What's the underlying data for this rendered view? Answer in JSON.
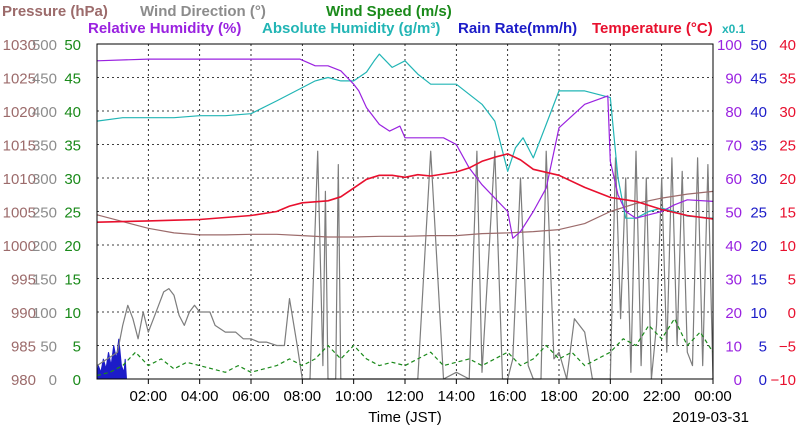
{
  "chart_data": {
    "type": "line",
    "title_parts": [
      [
        {
          "text": "Pressure (hPa)",
          "color": "#9c6b6b"
        },
        {
          "text": "Wind Direction (°)",
          "color": "#8c8c8c"
        },
        {
          "text": "Wind Speed (m/s)",
          "color": "#1a8a1a"
        }
      ],
      [
        {
          "text": "Relative Humidity (%)",
          "color": "#9a22e0"
        },
        {
          "text": "Absolute Humidity (g/m³)",
          "color": "#22b5b5"
        },
        {
          "text": "Rain Rate(mm/h)",
          "color": "#1c1cc8"
        },
        {
          "text": "Temperature (°C)",
          "color": "#e8102e"
        },
        {
          "text": "x0.1",
          "color": "#22b5b5"
        }
      ]
    ],
    "xlabel": "Time (JST)",
    "date_label": "2019-03-31",
    "x_range_hours": [
      0,
      24
    ],
    "x_ticks": [
      "02:00",
      "04:00",
      "06:00",
      "08:00",
      "10:00",
      "12:00",
      "14:00",
      "16:00",
      "18:00",
      "20:00",
      "22:00",
      "00:00"
    ],
    "left_axes": [
      {
        "name": "Pressure (hPa)",
        "color": "#9c6b6b",
        "ticks": [
          "980",
          "985",
          "990",
          "995",
          "1000",
          "1005",
          "1010",
          "1015",
          "1020",
          "1025",
          "1030"
        ],
        "ylim": [
          980,
          1030
        ]
      },
      {
        "name": "Wind Direction (°)",
        "color": "#8c8c8c",
        "ticks": [
          "0",
          "50",
          "100",
          "150",
          "200",
          "250",
          "300",
          "350",
          "400",
          "450",
          "500"
        ],
        "ylim": [
          0,
          500
        ]
      },
      {
        "name": "Wind Speed (m/s)",
        "color": "#1a8a1a",
        "ticks": [
          "0",
          "5",
          "10",
          "15",
          "20",
          "25",
          "30",
          "35",
          "40",
          "45",
          "50"
        ],
        "ylim": [
          0,
          50
        ]
      }
    ],
    "right_axes": [
      {
        "name": "Relative Humidity (%)",
        "color": "#9a22e0",
        "ticks": [
          "0",
          "10",
          "20",
          "30",
          "40",
          "50",
          "60",
          "70",
          "80",
          "90",
          "100"
        ],
        "ylim": [
          0,
          100
        ]
      },
      {
        "name": "Rain Rate(mm/h)",
        "color": "#1c1cc8",
        "ticks": [
          "0",
          "5",
          "10",
          "15",
          "20",
          "25",
          "30",
          "35",
          "40",
          "45",
          "50"
        ],
        "ylim": [
          0,
          50
        ]
      },
      {
        "name": "Temperature (°C)",
        "color": "#e8102e",
        "ticks": [
          "−10",
          "−5",
          "0",
          "5",
          "10",
          "15",
          "20",
          "25",
          "30",
          "35",
          "40"
        ],
        "ylim": [
          -10,
          40
        ]
      }
    ],
    "grid": true,
    "series": [
      {
        "name": "Temperature (°C)",
        "color": "#e8102e",
        "axis": "Temperature (°C)",
        "x": [
          0,
          1,
          2,
          3,
          4,
          5,
          6,
          7,
          7.5,
          8,
          9,
          9.5,
          10,
          10.5,
          11,
          11.5,
          12,
          12.5,
          13,
          14,
          14.5,
          15,
          15.5,
          16,
          16.5,
          17,
          18,
          19,
          20,
          21,
          22,
          23,
          24
        ],
        "y": [
          13.4,
          13.5,
          13.6,
          13.7,
          13.8,
          14.1,
          14.4,
          15.0,
          15.8,
          16.3,
          16.6,
          17.2,
          18.5,
          19.8,
          20.4,
          20.4,
          20.1,
          20.5,
          20.3,
          20.9,
          21.5,
          22.5,
          23.1,
          23.6,
          22.7,
          21.3,
          20.4,
          18.6,
          17.1,
          16.5,
          15.3,
          14.4,
          13.9
        ]
      },
      {
        "name": "Relative Humidity (%)",
        "color": "#9a22e0",
        "axis": "Relative Humidity (%)",
        "x": [
          0,
          2,
          4,
          6,
          7,
          7.9,
          8.5,
          9,
          9.5,
          10,
          10.2,
          10.5,
          11,
          11.4,
          11.8,
          12,
          12.5,
          13,
          13.5,
          14,
          14.5,
          15,
          15.5,
          16,
          16.2,
          16.5,
          17,
          17.5,
          18,
          19,
          19.9,
          20,
          20.3,
          20.6,
          21,
          21.5,
          22,
          22.5,
          23,
          24
        ],
        "y": [
          95,
          95.5,
          95.5,
          95.5,
          95.5,
          95.5,
          93.5,
          93.5,
          92,
          88,
          86,
          81,
          76,
          74,
          75.5,
          72,
          72,
          72,
          72,
          70,
          63,
          58,
          54,
          50,
          42,
          44,
          50,
          57,
          75,
          82,
          84.5,
          65,
          55,
          50,
          48,
          49,
          50,
          52,
          53.5,
          53
        ]
      },
      {
        "name": "Absolute Humidity (g/m³) x0.1",
        "color": "#22b5b5",
        "axis": "Wind Speed (m/s)",
        "x": [
          0,
          1,
          2,
          3,
          4,
          5,
          6,
          7,
          8,
          8.5,
          9,
          9.5,
          10,
          10.5,
          10.8,
          11,
          11.5,
          12,
          12.5,
          13,
          13.5,
          14,
          14.5,
          15,
          15.5,
          16,
          16.3,
          16.6,
          17,
          17.5,
          18,
          18.5,
          19,
          20,
          20.3,
          20.6,
          21,
          21.5,
          22,
          22.5,
          23,
          24
        ],
        "y": [
          38.5,
          39,
          39,
          39,
          39.3,
          39.3,
          39.6,
          41.5,
          43.5,
          44.5,
          45,
          44.5,
          44.5,
          45.8,
          47.5,
          48.5,
          46.5,
          47.5,
          45.5,
          44,
          44,
          44,
          42.5,
          41,
          38.5,
          31,
          34.5,
          36,
          33,
          38,
          43,
          43,
          43,
          42,
          30,
          24,
          24,
          25,
          25.5,
          25,
          24.3,
          24
        ]
      },
      {
        "name": "Pressure (hPa)",
        "color": "#9c6b6b",
        "axis": "Pressure (hPa)",
        "x": [
          0,
          1,
          2,
          3,
          4,
          5,
          6,
          7,
          8,
          9,
          10,
          11,
          12,
          13,
          14,
          15,
          16,
          17,
          18,
          19,
          20,
          21,
          22,
          23,
          24
        ],
        "y": [
          1004.5,
          1003.5,
          1002.5,
          1001.8,
          1001.5,
          1001.5,
          1001.6,
          1001.6,
          1001.4,
          1001.2,
          1001.2,
          1001.3,
          1001.3,
          1001.4,
          1001.4,
          1001.7,
          1001.8,
          1002.0,
          1002.3,
          1003.2,
          1005.0,
          1006.2,
          1007.0,
          1007.6,
          1008.0
        ]
      },
      {
        "name": "Wind Direction (°)",
        "color": "#7d7d7d",
        "axis": "Wind Direction (°)",
        "x": [
          0,
          0.8,
          1,
          1.2,
          1.4,
          1.6,
          1.8,
          2,
          2.2,
          2.4,
          2.6,
          2.8,
          3,
          3.2,
          3.4,
          3.6,
          3.8,
          4,
          4.4,
          4.6,
          5,
          5.4,
          5.7,
          6,
          6.3,
          6.6,
          7,
          7.3,
          7.5,
          7.8,
          8,
          8.3,
          8.6,
          8.8,
          8.9,
          9.0,
          9.1,
          9.3,
          9.4,
          9.5,
          9.6,
          9.8,
          10,
          10.5,
          11,
          11.5,
          12,
          12.5,
          13,
          13.5,
          14,
          14.5,
          14.8,
          15,
          15.5,
          15.8,
          16,
          16.2,
          16.5,
          16.8,
          17,
          17.3,
          17.5,
          17.8,
          18,
          18.3,
          18.6,
          19,
          19.3,
          19.6,
          20,
          20.2,
          20.4,
          20.6,
          20.8,
          21,
          21.2,
          21.4,
          21.6,
          21.8,
          22,
          22.2,
          22.4,
          22.6,
          22.8,
          23,
          23.2,
          23.4,
          23.6,
          23.8,
          24
        ],
        "y": [
          20,
          40,
          80,
          110,
          90,
          60,
          100,
          70,
          90,
          110,
          130,
          135,
          125,
          95,
          80,
          100,
          110,
          100,
          100,
          80,
          70,
          70,
          60,
          60,
          55,
          55,
          50,
          50,
          120,
          50,
          0,
          0,
          340,
          20,
          280,
          0,
          0,
          0,
          320,
          0,
          0,
          0,
          0,
          0,
          0,
          0,
          0,
          0,
          340,
          0,
          10,
          0,
          340,
          10,
          340,
          0,
          0,
          30,
          300,
          20,
          0,
          0,
          340,
          30,
          40,
          0,
          90,
          70,
          0,
          0,
          0,
          330,
          90,
          300,
          10,
          340,
          20,
          300,
          0,
          80,
          300,
          40,
          330,
          50,
          310,
          40,
          20,
          330,
          20,
          320,
          0
        ]
      },
      {
        "name": "Wind Speed (m/s)",
        "color": "#1a8a1a",
        "axis": "Wind Speed (m/s)",
        "style": "dashed",
        "x": [
          0,
          0.5,
          1,
          1.5,
          2,
          2.5,
          3,
          3.5,
          4,
          4.5,
          5,
          5.5,
          6,
          6.5,
          7,
          7.5,
          8,
          8.5,
          9,
          9.5,
          10,
          10.5,
          11,
          11.5,
          12,
          12.5,
          13,
          13.5,
          14,
          14.5,
          15,
          15.5,
          16,
          16.5,
          17,
          17.5,
          18,
          18.5,
          19,
          19.5,
          20,
          20.5,
          21,
          21.5,
          22,
          22.5,
          23,
          23.5,
          24
        ],
        "y": [
          0.5,
          1,
          2,
          4,
          2,
          3,
          1.5,
          2.5,
          2,
          1.5,
          1,
          2,
          1,
          1.5,
          2,
          3,
          2,
          3,
          5,
          3,
          5,
          3,
          2,
          2.5,
          2,
          3,
          4,
          2,
          2.5,
          3,
          2,
          3,
          4,
          2,
          3,
          5,
          3,
          4,
          2,
          3,
          4,
          6,
          5,
          8,
          6,
          9,
          5,
          7,
          4
        ]
      },
      {
        "name": "Rain Rate(mm/h)",
        "color": "#1c1cc8",
        "axis": "Rain Rate(mm/h)",
        "style": "filled",
        "x": [
          0,
          0.05,
          0.15,
          0.25,
          0.35,
          0.45,
          0.55,
          0.65,
          0.75,
          0.85,
          0.95,
          1.05,
          1.1,
          1.15,
          1.2,
          24
        ],
        "y": [
          0,
          2,
          1,
          3,
          1.5,
          4,
          2,
          5,
          3,
          6,
          2,
          1,
          3,
          0,
          0,
          0
        ]
      }
    ]
  }
}
